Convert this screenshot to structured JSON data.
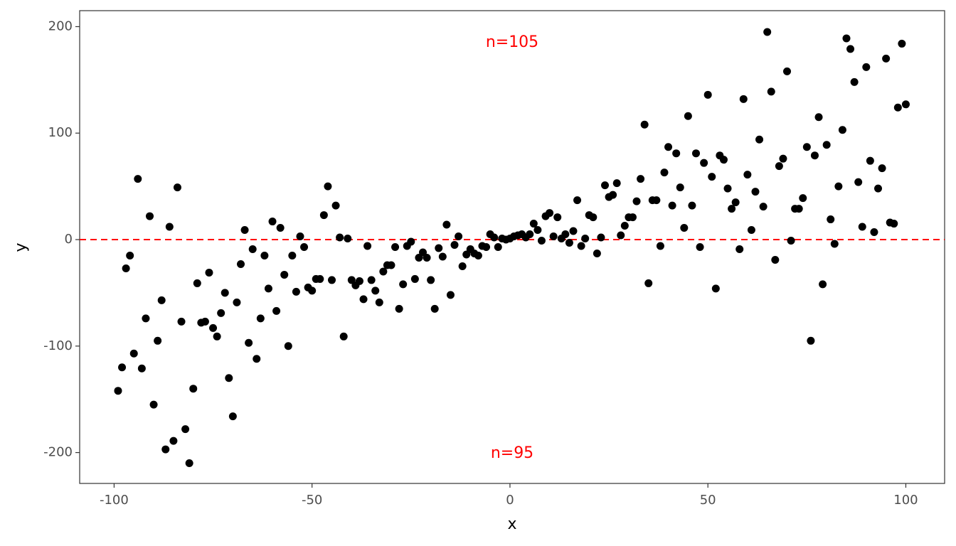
{
  "chart_data": {
    "type": "scatter",
    "xlabel": "x",
    "ylabel": "y",
    "x": [
      -99,
      -98,
      -97,
      -96,
      -95,
      -94,
      -93,
      -92,
      -91,
      -90,
      -89,
      -88,
      -87,
      -86,
      -85,
      -84,
      -83,
      -82,
      -81,
      -80,
      -79,
      -78,
      -77,
      -76,
      -75,
      -74,
      -73,
      -72,
      -71,
      -70,
      -69,
      -68,
      -67,
      -66,
      -65,
      -64,
      -63,
      -62,
      -61,
      -60,
      -59,
      -58,
      -57,
      -56,
      -55,
      -54,
      -53,
      -52,
      -51,
      -50,
      -49,
      -48,
      -47,
      -46,
      -45,
      -44,
      -43,
      -42,
      -41,
      -40,
      -39,
      -38,
      -37,
      -36,
      -35,
      -34,
      -33,
      -32,
      -31,
      -30,
      -29,
      -28,
      -27,
      -26,
      -25,
      -24,
      -23,
      -22,
      -21,
      -20,
      -19,
      -18,
      -17,
      -16,
      -15,
      -14,
      -13,
      -12,
      -11,
      -10,
      -9,
      -8,
      -7,
      -6,
      -5,
      -4,
      -3,
      -2,
      -1,
      0,
      1,
      2,
      3,
      4,
      5,
      6,
      7,
      8,
      9,
      10,
      11,
      12,
      13,
      14,
      15,
      16,
      17,
      18,
      19,
      20,
      21,
      22,
      23,
      24,
      25,
      26,
      27,
      28,
      29,
      30,
      31,
      32,
      33,
      34,
      35,
      36,
      37,
      38,
      39,
      40,
      41,
      42,
      43,
      44,
      45,
      46,
      47,
      48,
      49,
      50,
      51,
      52,
      53,
      54,
      55,
      56,
      57,
      58,
      59,
      60,
      61,
      62,
      63,
      64,
      65,
      66,
      67,
      68,
      69,
      70,
      71,
      72,
      73,
      74,
      75,
      76,
      77,
      78,
      79,
      80,
      81,
      82,
      83,
      84,
      85,
      86,
      87,
      88,
      89,
      90,
      91,
      92,
      93,
      94,
      95,
      96,
      97,
      98,
      99,
      100
    ],
    "y": [
      -142,
      -120,
      -27,
      -15,
      -107,
      57,
      -121,
      -74,
      22,
      -155,
      -95,
      -57,
      -197,
      12,
      -189,
      49,
      -77,
      -178,
      -210,
      -140,
      -41,
      -78,
      -77,
      -31,
      -83,
      -91,
      -69,
      -50,
      -130,
      -166,
      -59,
      -23,
      9,
      -97,
      -9,
      -112,
      -74,
      -15,
      -46,
      17,
      -67,
      11,
      -33,
      -100,
      -15,
      -49,
      3,
      -7,
      -45,
      -48,
      -37,
      -37,
      23,
      50,
      -38,
      32,
      2,
      -91,
      1,
      -38,
      -43,
      -39,
      -56,
      -6,
      -38,
      -48,
      -59,
      -30,
      -24,
      -24,
      -7,
      -65,
      -42,
      -6,
      -2,
      -37,
      -17,
      -12,
      -17,
      -38,
      -65,
      -8,
      -16,
      14,
      -52,
      -5,
      3,
      -25,
      -14,
      -9,
      -13,
      -15,
      -6,
      -7,
      5,
      2,
      -7,
      1,
      0,
      1,
      3,
      4,
      5,
      2,
      5,
      15,
      9,
      -1,
      22,
      25,
      3,
      21,
      1,
      5,
      -3,
      8,
      37,
      -6,
      1,
      23,
      21,
      -13,
      2,
      51,
      40,
      42,
      53,
      4,
      13,
      21,
      21,
      36,
      57,
      108,
      -41,
      37,
      37,
      -6,
      63,
      87,
      32,
      81,
      49,
      11,
      116,
      32,
      81,
      -7,
      72,
      136,
      59,
      -46,
      79,
      75,
      48,
      29,
      35,
      -9,
      132,
      61,
      9,
      45,
      94,
      31,
      195,
      139,
      -19,
      69,
      76,
      158,
      -1,
      29,
      29,
      39,
      87,
      -95,
      79,
      115,
      -42,
      89,
      19,
      -4,
      50,
      103,
      189,
      179,
      148,
      54,
      12,
      162,
      74,
      7,
      48,
      67,
      170,
      16,
      15,
      124,
      184,
      127
    ],
    "color": "#000000",
    "xlim": [
      -108.7,
      109.8
    ],
    "ylim": [
      -229,
      215
    ],
    "xticks": [
      -100,
      -50,
      0,
      50,
      100
    ],
    "yticks": [
      -200,
      -100,
      0,
      100,
      200
    ],
    "hline": {
      "value": 0,
      "color": "#ff0000"
    },
    "annotations": [
      {
        "text": "n=105",
        "color": "#ff0000"
      },
      {
        "text": "n=95",
        "color": "#ff0000"
      }
    ]
  }
}
